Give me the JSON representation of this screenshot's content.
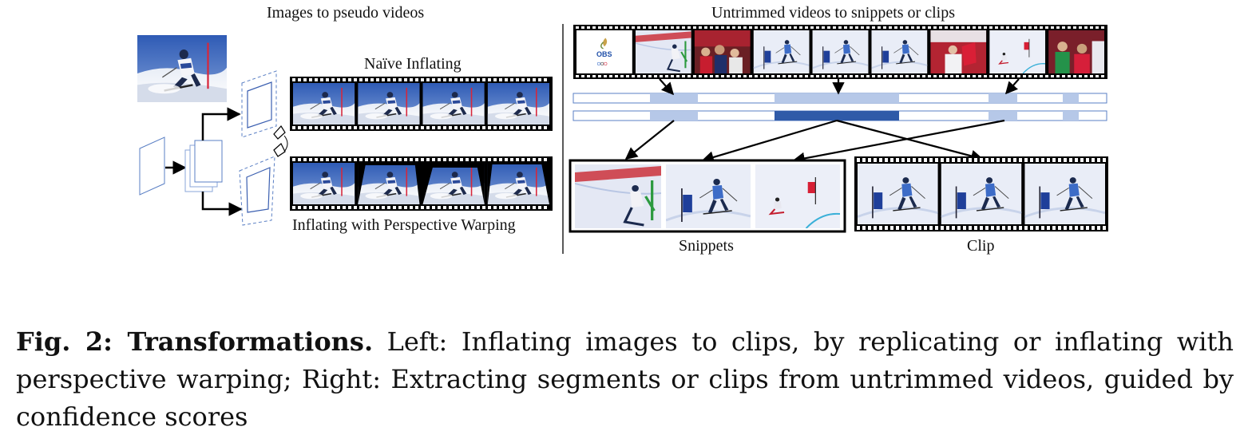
{
  "figure": {
    "left_title": "Images to pseudo videos",
    "right_title": "Untrimmed videos to snippets or clips",
    "naive_label": "Naïve Inflating",
    "warp_label": "Inflating with Perspective Warping",
    "snippets_label": "Snippets",
    "clip_label": "Clip",
    "logo_text": "OBS",
    "colors": {
      "sky": "#3f66b8",
      "snow": "#eef1f7",
      "bar_light": "#b6c8e8",
      "bar_dark": "#2f5aa8",
      "frame_blue": "#5a7fc4"
    }
  },
  "caption": {
    "label": "Fig. 2: Transformations.",
    "text": " Left: Inflating images to clips, by replicating or inflating with perspective warping; Right: Extracting segments or clips from untrimmed videos, guided by confidence scores"
  }
}
